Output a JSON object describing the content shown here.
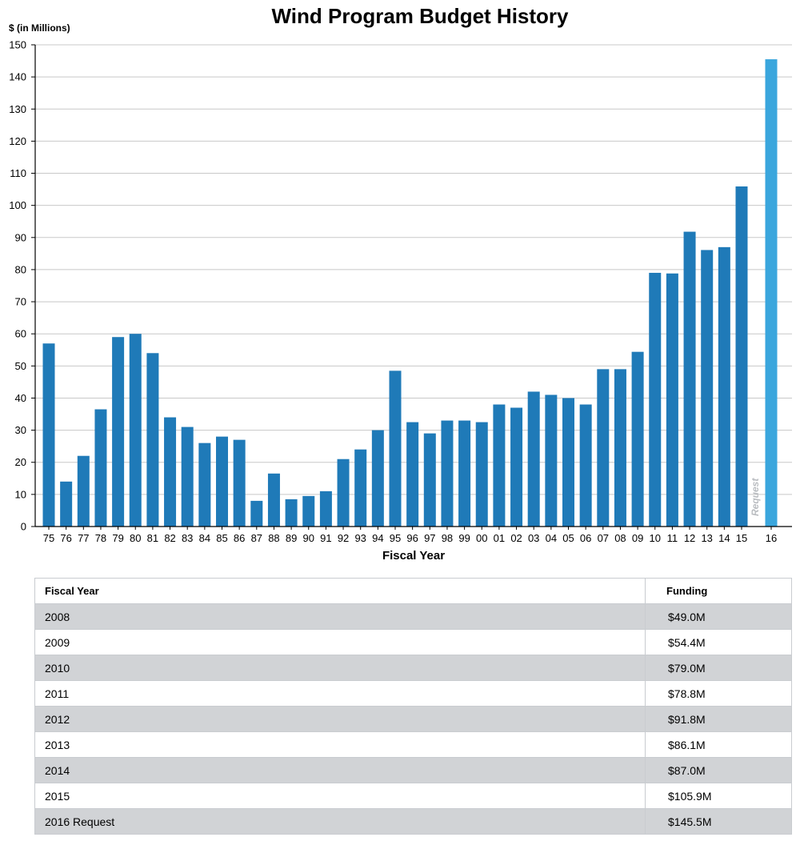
{
  "chart_data": {
    "type": "bar",
    "title": "Wind Program Budget History",
    "ylabel": "$ (in Millions)",
    "xlabel": "Fiscal Year",
    "ylim": [
      0,
      150
    ],
    "yticks": [
      0,
      10,
      20,
      30,
      40,
      50,
      60,
      70,
      80,
      90,
      100,
      110,
      120,
      130,
      140,
      150
    ],
    "grid": true,
    "categories": [
      "75",
      "76",
      "77",
      "78",
      "79",
      "80",
      "81",
      "82",
      "83",
      "84",
      "85",
      "86",
      "87",
      "88",
      "89",
      "90",
      "91",
      "92",
      "93",
      "94",
      "95",
      "96",
      "97",
      "98",
      "99",
      "00",
      "01",
      "02",
      "03",
      "04",
      "05",
      "06",
      "07",
      "08",
      "09",
      "10",
      "11",
      "12",
      "13",
      "14",
      "15",
      "16"
    ],
    "values": [
      57,
      14,
      22,
      36.5,
      59,
      60,
      54,
      34,
      31,
      26,
      28,
      27,
      8,
      16.5,
      8.5,
      9.5,
      11,
      21,
      24,
      30,
      48.5,
      32.5,
      29,
      33,
      33,
      32.5,
      38,
      37,
      42,
      41,
      40,
      38,
      49,
      49,
      54.4,
      79,
      78.8,
      91.8,
      86.1,
      87,
      105.9,
      145.5
    ],
    "annotation": "Request",
    "colors": {
      "bar": "#1f7ab8",
      "request_bar": "#3aa6dd",
      "grid": "#c8c8c8"
    }
  },
  "table": {
    "headers": [
      "Fiscal Year",
      "Funding"
    ],
    "rows": [
      [
        "2008",
        "$49.0M"
      ],
      [
        "2009",
        "$54.4M"
      ],
      [
        "2010",
        "$79.0M"
      ],
      [
        "2011",
        "$78.8M"
      ],
      [
        "2012",
        "$91.8M"
      ],
      [
        "2013",
        "$86.1M"
      ],
      [
        "2014",
        "$87.0M"
      ],
      [
        "2015",
        "$105.9M"
      ],
      [
        "2016 Request",
        "$145.5M"
      ]
    ]
  }
}
